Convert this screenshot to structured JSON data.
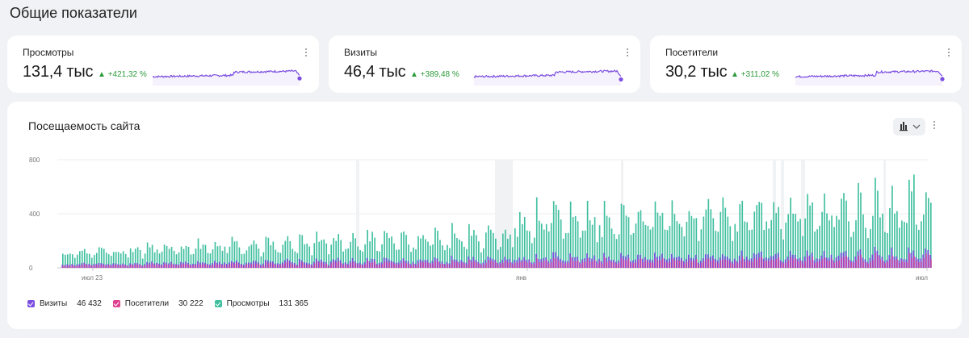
{
  "page": {
    "title": "Общие показатели"
  },
  "kpis": [
    {
      "label": "Просмотры",
      "value": "131,4 тыс",
      "delta": "▲ +421,32 %"
    },
    {
      "label": "Визиты",
      "value": "46,4 тыс",
      "delta": "▲ +389,48 %"
    },
    {
      "label": "Посетители",
      "value": "30,2 тыс",
      "delta": "▲ +311,02 %"
    }
  ],
  "colors": {
    "visits": "#7b4ee0",
    "visitors": "#e0418f",
    "views": "#3fbf9f",
    "sparkline": "#7b4ee0",
    "delta_up": "#2d9a3a"
  },
  "chart": {
    "title": "Посещаемость сайта",
    "type_icon": "bar-chart-icon",
    "legend": [
      {
        "name": "Визиты",
        "value": "46 432",
        "color": "#7b4ee0"
      },
      {
        "name": "Посетители",
        "value": "30 222",
        "color": "#e0418f"
      },
      {
        "name": "Просмотры",
        "value": "131 365",
        "color": "#3fbf9f"
      }
    ]
  },
  "chart_data": {
    "type": "bar",
    "title": "Посещаемость сайта",
    "ylim": [
      0,
      800
    ],
    "yticks": [
      "800",
      "400",
      "0"
    ],
    "xticks": [
      "июл 23",
      "янв",
      "июл"
    ],
    "grid": true,
    "legend_placement": "bottom-left",
    "series": [
      {
        "name": "Просмотры",
        "approx_range": [
          40,
          700
        ]
      },
      {
        "name": "Визиты",
        "approx_range": [
          20,
          200
        ]
      },
      {
        "name": "Посетители",
        "approx_range": [
          15,
          140
        ]
      }
    ]
  }
}
